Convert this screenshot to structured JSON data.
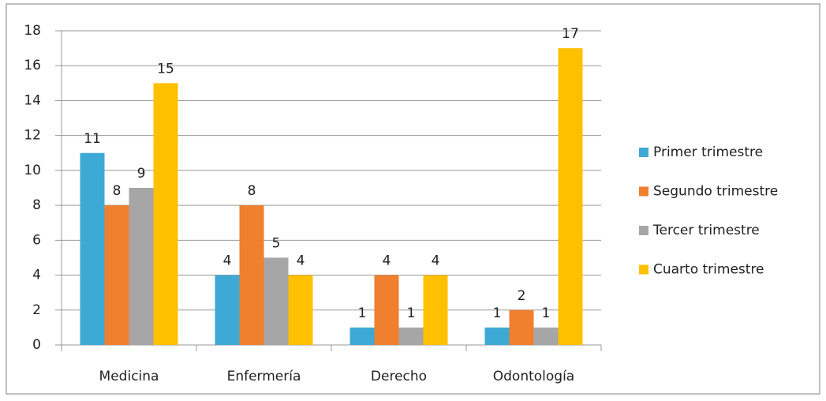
{
  "chart_data": {
    "type": "bar",
    "categories": [
      "Medicina",
      "Enfermería",
      "Derecho",
      "Odontología"
    ],
    "series": [
      {
        "name": "Primer trimestre",
        "color": "#3fa9d6",
        "values": [
          11,
          4,
          1,
          1
        ]
      },
      {
        "name": "Segundo trimestre",
        "color": "#f07f2e",
        "values": [
          8,
          8,
          4,
          2
        ]
      },
      {
        "name": "Tercer trimestre",
        "color": "#a6a6a6",
        "values": [
          9,
          5,
          1,
          1
        ]
      },
      {
        "name": "Cuarto trimestre",
        "color": "#ffc000",
        "values": [
          15,
          4,
          4,
          17
        ]
      }
    ],
    "ylim": [
      0,
      18
    ],
    "yticks": [
      0,
      2,
      4,
      6,
      8,
      10,
      12,
      14,
      16,
      18
    ],
    "grid": true,
    "legend": "right"
  }
}
